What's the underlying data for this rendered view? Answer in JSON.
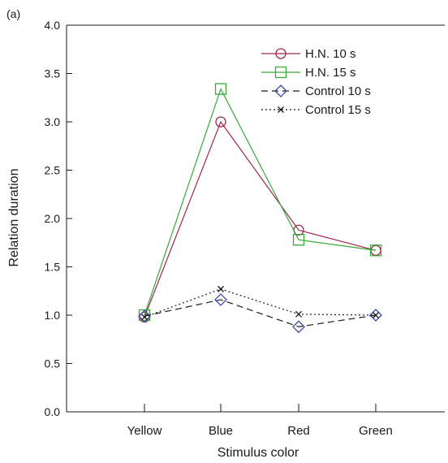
{
  "panel_label": "(a)",
  "chart_data": {
    "type": "line",
    "title": "",
    "xlabel": "Stimulus color",
    "ylabel": "Relation duration",
    "categories": [
      "Yellow",
      "Blue",
      "Red",
      "Green"
    ],
    "ylim": [
      0,
      4
    ],
    "yticks": [
      "0.0",
      "0.5",
      "1.0",
      "1.5",
      "2.0",
      "2.5",
      "3.0",
      "3.5",
      "4.0"
    ],
    "grid": false,
    "legend_position": "top-right",
    "series": [
      {
        "name": "H.N. 10 s",
        "values": [
          0.98,
          3.0,
          1.88,
          1.67
        ],
        "color": "#a3264a",
        "marker": "circle",
        "dash": "solid"
      },
      {
        "name": "H.N. 15 s",
        "values": [
          1.0,
          3.34,
          1.78,
          1.67
        ],
        "color": "#3aa83a",
        "marker": "square",
        "dash": "solid"
      },
      {
        "name": "Control 10 s",
        "values": [
          0.99,
          1.16,
          0.88,
          1.0
        ],
        "color": "#1a1a1a",
        "marker": "diamond",
        "dash": "dashed",
        "marker_color": "#3a4aa8",
        "label_color": "#3a4aa8"
      },
      {
        "name": "Control 15 s",
        "values": [
          0.98,
          1.27,
          1.01,
          1.0
        ],
        "color": "#1a1a1a",
        "marker": "x",
        "dash": "dotted"
      }
    ]
  }
}
